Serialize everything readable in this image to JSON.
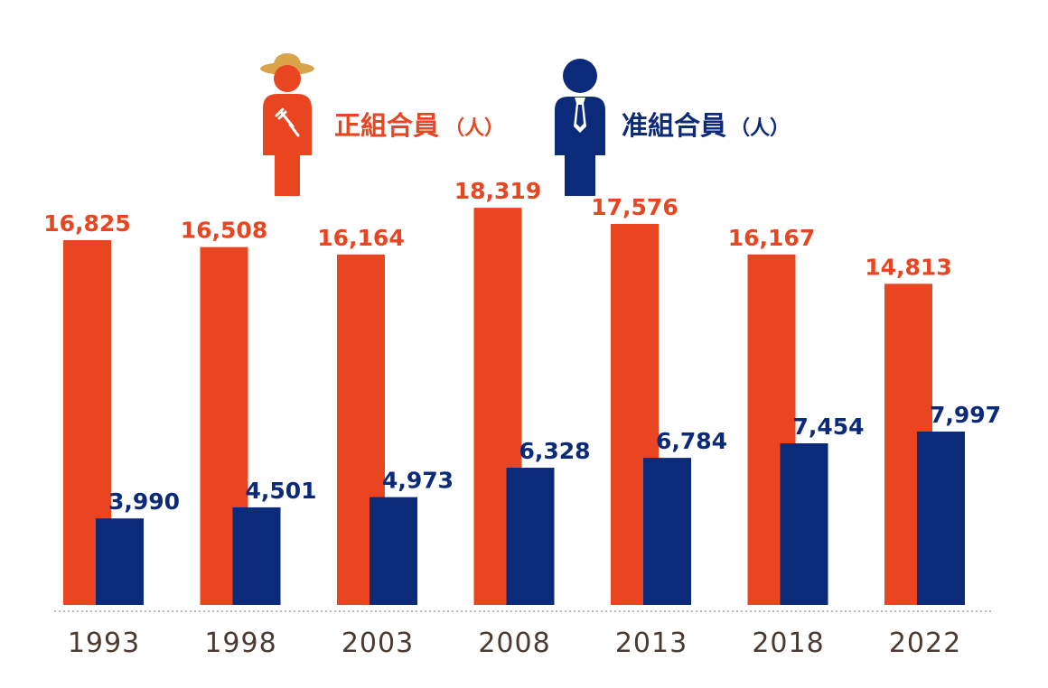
{
  "chart_data": {
    "type": "bar",
    "categories": [
      "1993",
      "1998",
      "2003",
      "2008",
      "2013",
      "2018",
      "2022"
    ],
    "series": [
      {
        "name": "正組合員",
        "unit": "（人）",
        "values": [
          16825,
          16508,
          16164,
          18319,
          17576,
          16167,
          14813
        ],
        "labels": [
          "16,825",
          "16,508",
          "16,164",
          "18,319",
          "17,576",
          "16,167",
          "14,813"
        ]
      },
      {
        "name": "准組合員",
        "unit": "（人）",
        "values": [
          3990,
          4501,
          4973,
          6328,
          6784,
          7454,
          7997
        ],
        "labels": [
          "3,990",
          "4,501",
          "4,973",
          "6,328",
          "6,784",
          "7,454",
          "7,997"
        ]
      }
    ],
    "ylim": [
      0,
      20000
    ],
    "grid": false,
    "legend_position": "top-center"
  },
  "colors": {
    "regular": "#e84520",
    "associate": "#0b2a7a",
    "hat": "#d9a34a",
    "axis_text": "#4a3b32",
    "baseline": "#bbbbbb"
  },
  "legend_icons": [
    "farmer-with-hat-icon",
    "businessman-with-tie-icon"
  ]
}
